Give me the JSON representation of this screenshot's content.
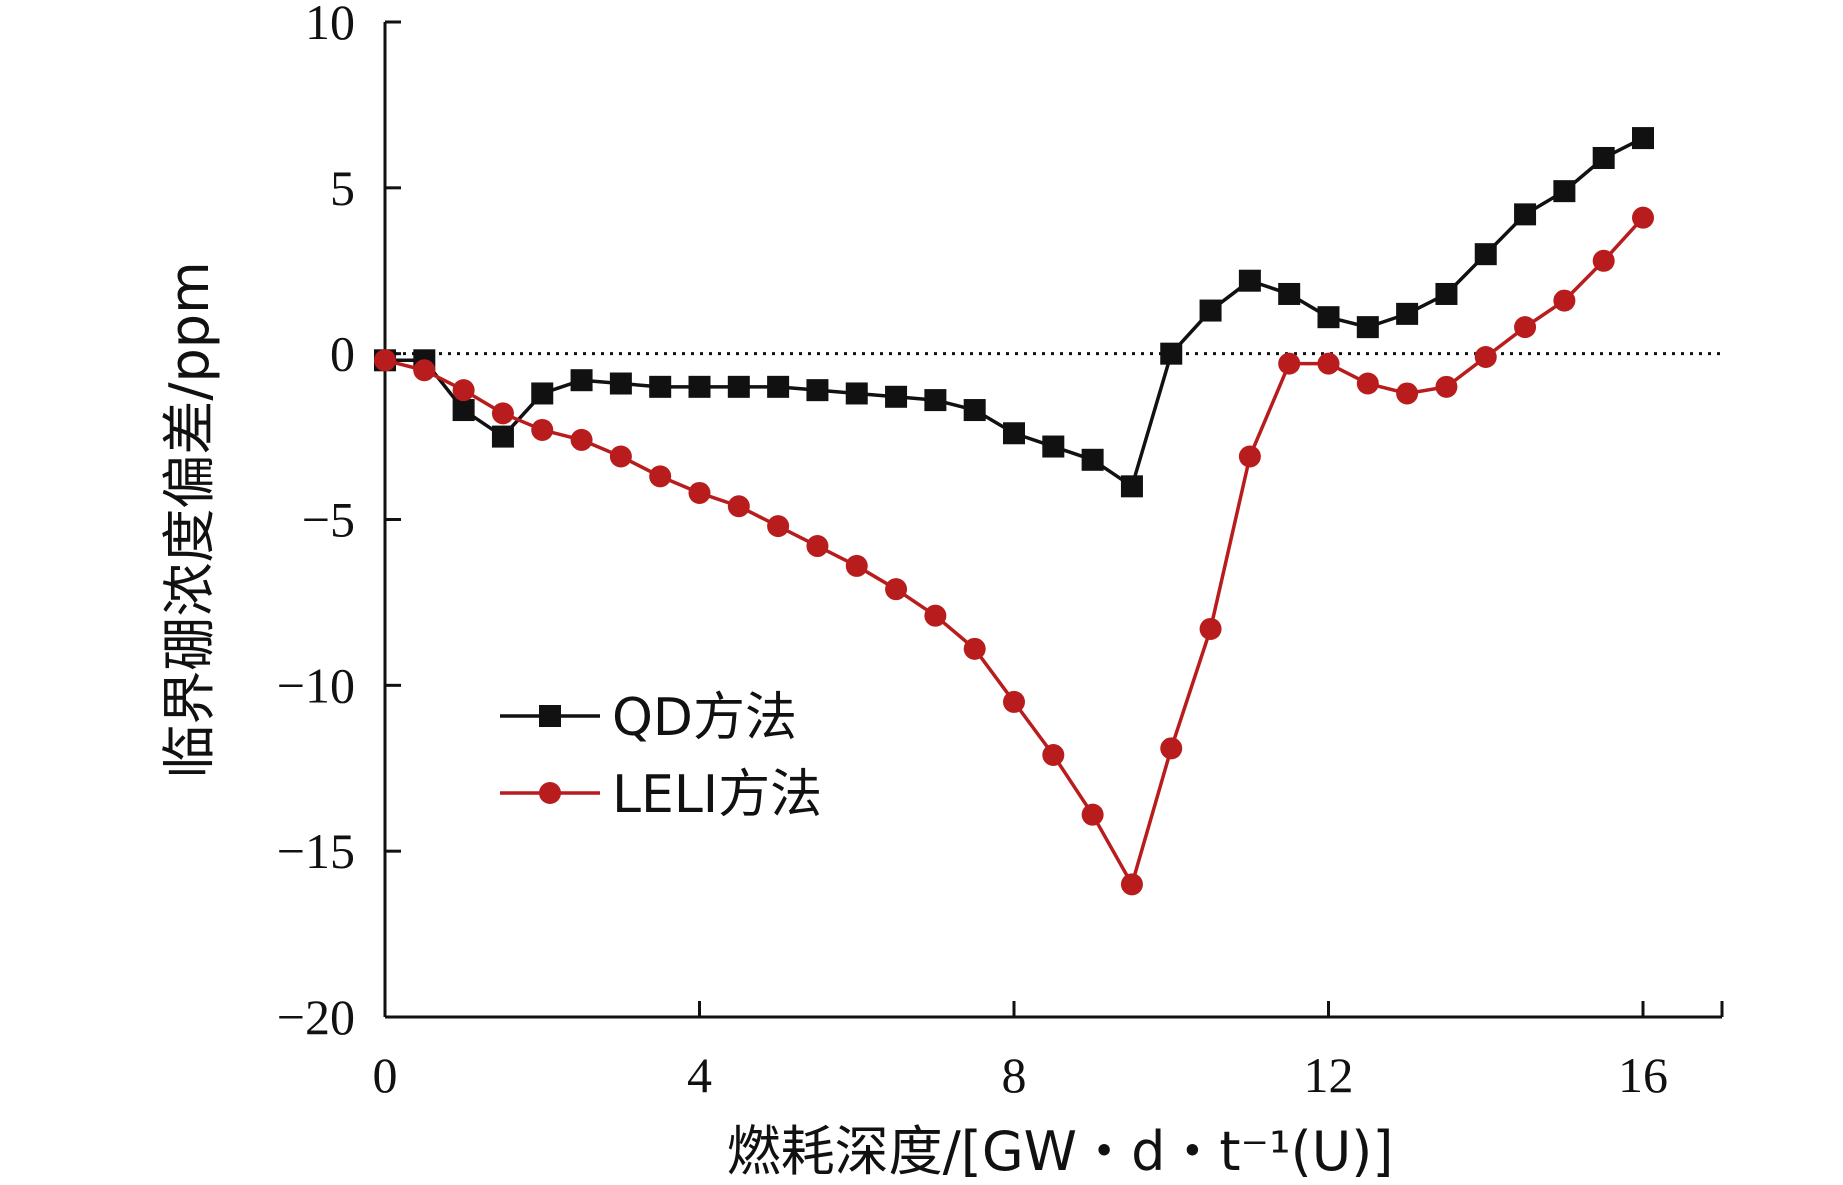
{
  "chart_data": {
    "type": "line",
    "xlabel": "燃耗深度/[GW・d・t⁻¹(U)]",
    "ylabel": "临界硼浓度偏差/ppm",
    "xlim": [
      0,
      17
    ],
    "ylim": [
      -20,
      10
    ],
    "xticks": [
      0,
      4,
      8,
      12,
      16
    ],
    "yticks": [
      -20,
      -15,
      -10,
      -5,
      0,
      5,
      10
    ],
    "xtick_labels": [
      "0",
      "4",
      "8",
      "12",
      "16"
    ],
    "ytick_labels": [
      "−20",
      "−15",
      "−10",
      "−5",
      "0",
      "5",
      "10"
    ],
    "reference_line": {
      "y": 0,
      "style": "dotted"
    },
    "grid": false,
    "legend_position": "lower-left",
    "series": [
      {
        "name": "QD方法",
        "color": "#111111",
        "marker": "square",
        "x": [
          0,
          0.5,
          1,
          1.5,
          2,
          2.5,
          3,
          3.5,
          4,
          4.5,
          5,
          5.5,
          6,
          6.5,
          7,
          7.5,
          8,
          8.5,
          9,
          9.5,
          10,
          10.5,
          11,
          11.5,
          12,
          12.5,
          13,
          13.5,
          14,
          14.5,
          15,
          15.5,
          16
        ],
        "y": [
          -0.2,
          -0.2,
          -1.7,
          -2.5,
          -1.2,
          -0.8,
          -0.9,
          -1.0,
          -1.0,
          -1.0,
          -1.0,
          -1.1,
          -1.2,
          -1.3,
          -1.4,
          -1.7,
          -2.4,
          -2.8,
          -3.2,
          -4.0,
          0.0,
          1.3,
          2.2,
          1.8,
          1.1,
          0.8,
          1.2,
          1.8,
          3.0,
          4.2,
          4.9,
          5.9,
          6.5
        ]
      },
      {
        "name": "LELI方法",
        "color": "#b81c1c",
        "marker": "circle",
        "x": [
          0,
          0.5,
          1,
          1.5,
          2,
          2.5,
          3,
          3.5,
          4,
          4.5,
          5,
          5.5,
          6,
          6.5,
          7,
          7.5,
          8,
          8.5,
          9,
          9.5,
          10,
          10.5,
          11,
          11.5,
          12,
          12.5,
          13,
          13.5,
          14,
          14.5,
          15,
          15.5,
          16
        ],
        "y": [
          -0.2,
          -0.5,
          -1.1,
          -1.8,
          -2.3,
          -2.6,
          -3.1,
          -3.7,
          -4.2,
          -4.6,
          -5.2,
          -5.8,
          -6.4,
          -7.1,
          -7.9,
          -8.9,
          -10.5,
          -12.1,
          -13.9,
          -16.0,
          -11.9,
          -8.3,
          -3.1,
          -0.3,
          -0.3,
          -0.9,
          -1.2,
          -1.0,
          -0.1,
          0.8,
          1.6,
          2.8,
          4.1
        ]
      }
    ]
  }
}
